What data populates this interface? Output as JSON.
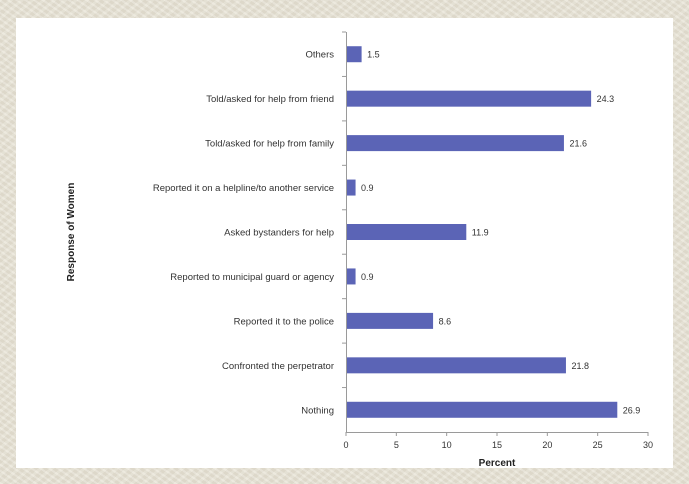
{
  "chart_data": {
    "type": "bar",
    "orientation": "horizontal",
    "title": "",
    "xlabel": "Percent",
    "ylabel": "Response of Women",
    "categories": [
      "Others",
      "Told/asked for help from friend",
      "Told/asked for help from family",
      "Reported it on a helpline/to another service",
      "Asked bystanders for help",
      "Reported to municipal guard or agency",
      "Reported it to the police",
      "Confronted the perpetrator",
      "Nothing"
    ],
    "values": [
      1.5,
      24.3,
      21.6,
      0.9,
      11.9,
      0.9,
      8.6,
      21.8,
      26.9
    ],
    "value_labels": [
      "1.5",
      "24.3",
      "21.6",
      "0.9",
      "11.9",
      "0.9",
      "8.6",
      "21.8",
      "26.9"
    ],
    "xlim": [
      0,
      30
    ],
    "xticks": [
      "0",
      "5",
      "10",
      "15",
      "20",
      "25",
      "30"
    ],
    "grid": false,
    "legend": "none",
    "bar_color": "#5b64b6"
  }
}
